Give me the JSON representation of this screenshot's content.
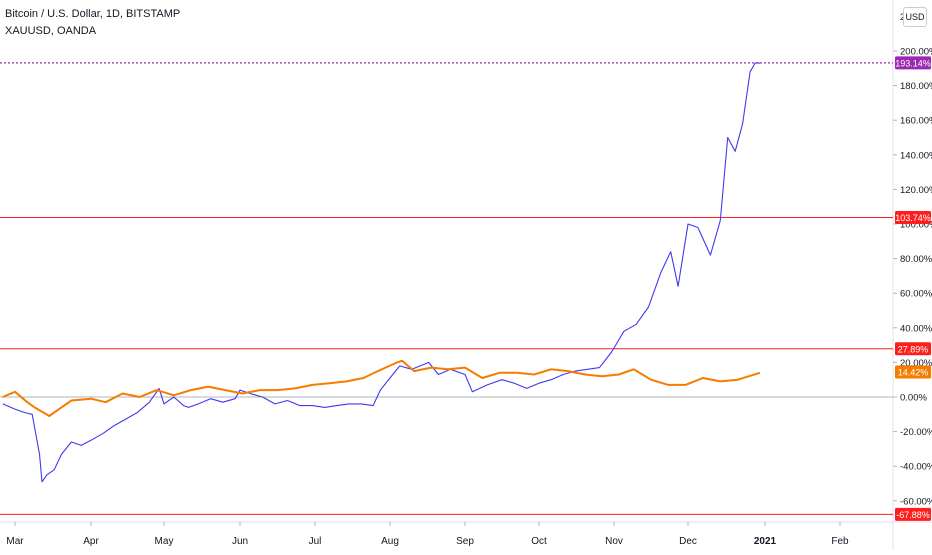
{
  "legend": {
    "main_series": "Bitcoin / U.S. Dollar, 1D, BITSTAMP",
    "compare_series": "XAUUSD, OANDA"
  },
  "scale_button": "USD",
  "top_tick_fragment": "2",
  "colors": {
    "btc": "#3f39f0",
    "gold": "#f57c00",
    "hline": "#ff1e1e",
    "last_btc": "#9c27b0",
    "zero_line": "#b2b5be",
    "grid_text": "#131722"
  },
  "chart_data": {
    "type": "line",
    "x_axis": {
      "ticks": [
        "Mar",
        "Apr",
        "May",
        "Jun",
        "Jul",
        "Aug",
        "Sep",
        "Oct",
        "Nov",
        "Dec",
        "2021",
        "Feb"
      ],
      "range": [
        "2020-02-25",
        "2021-02-28"
      ]
    },
    "y_axis": {
      "unit": "%",
      "ticks": [
        -60,
        -40,
        -20,
        0,
        20,
        40,
        60,
        80,
        100,
        120,
        140,
        160,
        180,
        200
      ],
      "tick_labels": [
        "-60.00%",
        "-40.00%",
        "-20.00%",
        "0.00%",
        "20.00%",
        "40.00%",
        "60.00%",
        "80.00%",
        "100.00%",
        "120.00%",
        "140.00%",
        "160.00%",
        "180.00%",
        "200.00%"
      ],
      "range": [
        -70,
        225
      ]
    },
    "grid": false,
    "series": [
      {
        "key": "btc",
        "x": [
          "2020-02-25",
          "2020-03-01",
          "2020-03-05",
          "2020-03-08",
          "2020-03-11",
          "2020-03-12",
          "2020-03-14",
          "2020-03-17",
          "2020-03-20",
          "2020-03-24",
          "2020-03-28",
          "2020-04-01",
          "2020-04-06",
          "2020-04-10",
          "2020-04-15",
          "2020-04-20",
          "2020-04-25",
          "2020-04-29",
          "2020-05-01",
          "2020-05-05",
          "2020-05-09",
          "2020-05-11",
          "2020-05-15",
          "2020-05-20",
          "2020-05-25",
          "2020-05-30",
          "2020-06-01",
          "2020-06-05",
          "2020-06-10",
          "2020-06-15",
          "2020-06-20",
          "2020-06-25",
          "2020-06-30",
          "2020-07-05",
          "2020-07-10",
          "2020-07-15",
          "2020-07-20",
          "2020-07-25",
          "2020-07-28",
          "2020-08-01",
          "2020-08-05",
          "2020-08-10",
          "2020-08-17",
          "2020-08-21",
          "2020-08-26",
          "2020-09-01",
          "2020-09-04",
          "2020-09-10",
          "2020-09-16",
          "2020-09-21",
          "2020-09-26",
          "2020-10-01",
          "2020-10-06",
          "2020-10-11",
          "2020-10-16",
          "2020-10-21",
          "2020-10-26",
          "2020-10-31",
          "2020-11-05",
          "2020-11-10",
          "2020-11-15",
          "2020-11-20",
          "2020-11-24",
          "2020-11-27",
          "2020-12-01",
          "2020-12-05",
          "2020-12-10",
          "2020-12-14",
          "2020-12-17",
          "2020-12-20",
          "2020-12-23",
          "2020-12-26",
          "2020-12-28",
          "2020-12-30"
        ],
        "values": [
          -4,
          -7,
          -9,
          -10,
          -33,
          -49,
          -45,
          -42,
          -33,
          -26,
          -28,
          -25,
          -21,
          -17,
          -13,
          -9,
          -3,
          5,
          -4,
          0,
          -5,
          -6,
          -4,
          -1,
          -3,
          -1,
          4,
          2,
          0,
          -4,
          -2,
          -5,
          -5,
          -6,
          -5,
          -4,
          -4,
          -5,
          4,
          11,
          18,
          16,
          20,
          13,
          16,
          13,
          3,
          7,
          10,
          8,
          5,
          8,
          10,
          13,
          15,
          16,
          17,
          26,
          38,
          42,
          52,
          72,
          84,
          64,
          100,
          98,
          82,
          102,
          150,
          142,
          158,
          188,
          193,
          193
        ]
      },
      {
        "key": "gold",
        "x": [
          "2020-02-25",
          "2020-03-01",
          "2020-03-06",
          "2020-03-09",
          "2020-03-15",
          "2020-03-19",
          "2020-03-24",
          "2020-04-01",
          "2020-04-07",
          "2020-04-14",
          "2020-04-21",
          "2020-04-28",
          "2020-05-05",
          "2020-05-12",
          "2020-05-19",
          "2020-05-26",
          "2020-06-02",
          "2020-06-09",
          "2020-06-16",
          "2020-06-23",
          "2020-06-30",
          "2020-07-07",
          "2020-07-14",
          "2020-07-21",
          "2020-07-27",
          "2020-08-04",
          "2020-08-06",
          "2020-08-11",
          "2020-08-18",
          "2020-08-25",
          "2020-09-01",
          "2020-09-08",
          "2020-09-15",
          "2020-09-22",
          "2020-09-29",
          "2020-10-06",
          "2020-10-13",
          "2020-10-20",
          "2020-10-27",
          "2020-11-03",
          "2020-11-09",
          "2020-11-16",
          "2020-11-23",
          "2020-11-30",
          "2020-12-07",
          "2020-12-14",
          "2020-12-21",
          "2020-12-30"
        ],
        "values": [
          0,
          3,
          -3,
          -6,
          -11,
          -7,
          -2,
          -1,
          -3,
          2,
          0,
          4,
          1,
          4,
          6,
          4,
          2,
          4,
          4,
          5,
          7,
          8,
          9,
          11,
          15,
          20,
          21,
          15,
          17,
          16,
          17,
          11,
          14,
          14,
          13,
          16,
          15,
          13,
          12,
          13,
          16,
          10,
          7,
          7,
          11,
          9,
          10,
          14
        ]
      }
    ],
    "horizontal_lines": [
      103.74,
      27.89,
      -67.88
    ],
    "price_labels": [
      {
        "text": "193.14%",
        "value": 193.14,
        "style": "last_btc"
      },
      {
        "text": "103.74%",
        "value": 103.74,
        "style": "hline"
      },
      {
        "text": "27.89%",
        "value": 27.89,
        "style": "hline"
      },
      {
        "text": "14.42%",
        "value": 14.42,
        "style": "gold"
      },
      {
        "text": "-67.88%",
        "value": -67.88,
        "style": "hline"
      }
    ],
    "last_btc_value": 193.14
  }
}
